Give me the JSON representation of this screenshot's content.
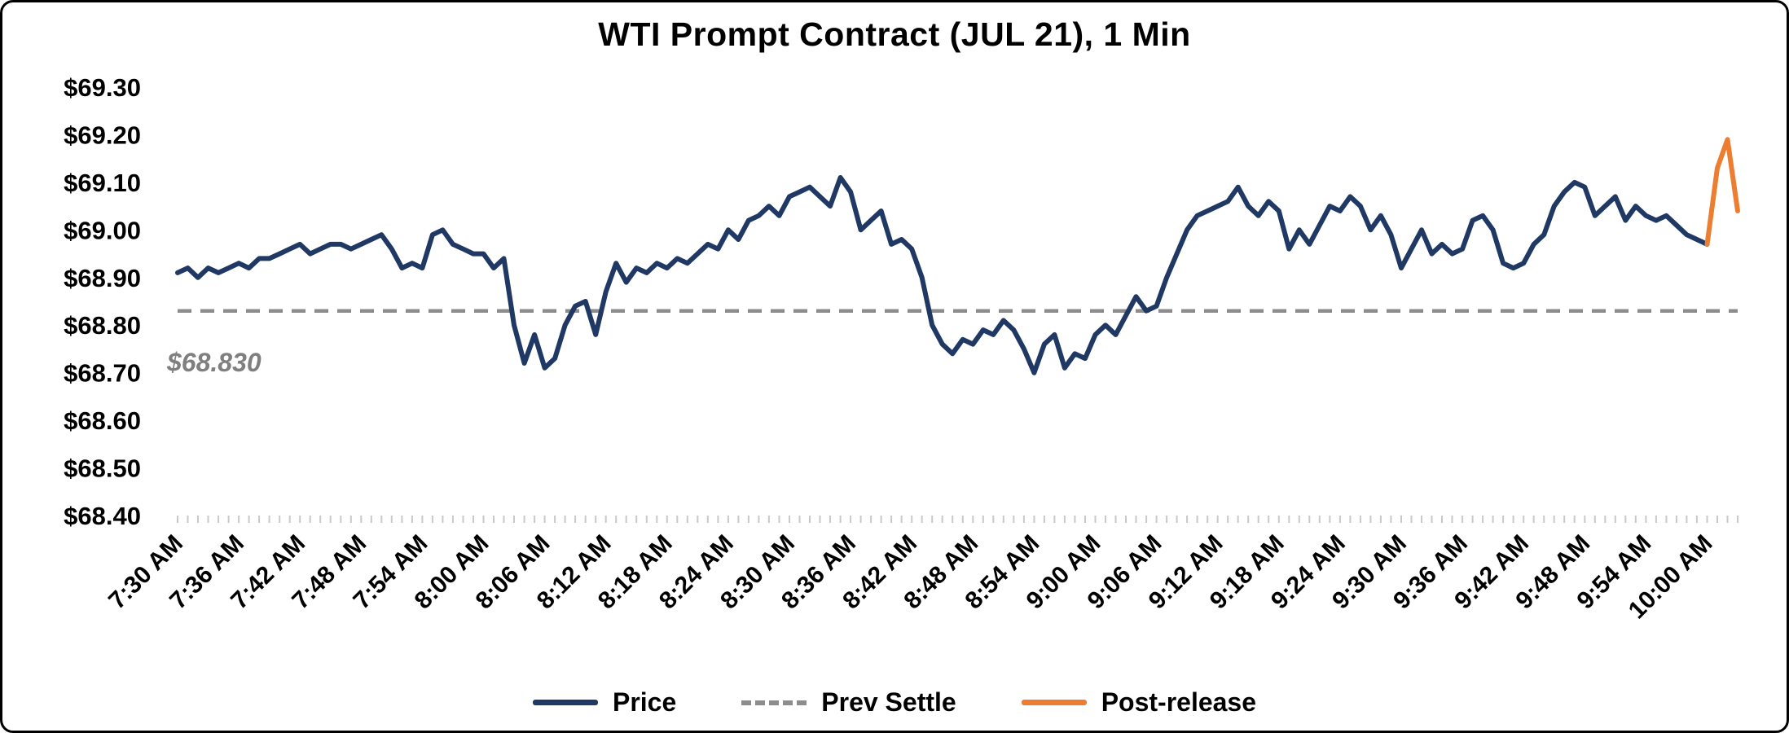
{
  "title": "WTI Prompt Contract (JUL 21), 1 Min",
  "annotation": {
    "prev_settle_label": "$68.830"
  },
  "colors": {
    "price": "#1F3864",
    "post_release": "#ED7D31",
    "prev_settle": "#8C8C8C",
    "annotation_gray": "#7F7F7F",
    "tick_text": "#000000",
    "minor_tick": "#C9C9C9"
  },
  "legend": {
    "position": "bottom",
    "items": [
      {
        "label": "Price",
        "swatch": "solid",
        "color": "#1F3864"
      },
      {
        "label": "Prev Settle",
        "swatch": "dashed",
        "color": "#8C8C8C"
      },
      {
        "label": "Post-release",
        "swatch": "solid",
        "color": "#ED7D31"
      }
    ]
  },
  "chart_data": {
    "type": "line",
    "title": "WTI Prompt Contract (JUL 21), 1 Min",
    "xlabel": "",
    "ylabel": "",
    "ylim": [
      68.4,
      69.3
    ],
    "y_tick_step": 0.1,
    "y_tick_labels": [
      "$69.30",
      "$69.20",
      "$69.10",
      "$69.00",
      "$68.90",
      "$68.80",
      "$68.70",
      "$68.60",
      "$68.50",
      "$68.40"
    ],
    "x_count": 154,
    "x_tick_every": 6,
    "x_interval_minutes": 1,
    "x_tick_labels": [
      "7:30 AM",
      "7:36 AM",
      "7:42 AM",
      "7:48 AM",
      "7:54 AM",
      "8:00 AM",
      "8:06 AM",
      "8:12 AM",
      "8:18 AM",
      "8:24 AM",
      "8:30 AM",
      "8:36 AM",
      "8:42 AM",
      "8:48 AM",
      "8:54 AM",
      "9:00 AM",
      "9:06 AM",
      "9:12 AM",
      "9:18 AM",
      "9:24 AM",
      "9:30 AM",
      "9:36 AM",
      "9:42 AM",
      "9:48 AM",
      "9:54 AM",
      "10:00 AM"
    ],
    "grid": "off",
    "legend_position": "bottom",
    "prev_settle": 68.83,
    "series": [
      {
        "name": "Price",
        "color": "#1F3864",
        "start_index": 0,
        "values": [
          68.91,
          68.92,
          68.9,
          68.92,
          68.91,
          68.92,
          68.93,
          68.92,
          68.94,
          68.94,
          68.95,
          68.96,
          68.97,
          68.95,
          68.96,
          68.97,
          68.97,
          68.96,
          68.97,
          68.98,
          68.99,
          68.96,
          68.92,
          68.93,
          68.92,
          68.99,
          69.0,
          68.97,
          68.96,
          68.95,
          68.95,
          68.92,
          68.94,
          68.8,
          68.72,
          68.78,
          68.71,
          68.73,
          68.8,
          68.84,
          68.85,
          68.78,
          68.87,
          68.93,
          68.89,
          68.92,
          68.91,
          68.93,
          68.92,
          68.94,
          68.93,
          68.95,
          68.97,
          68.96,
          69.0,
          68.98,
          69.02,
          69.03,
          69.05,
          69.03,
          69.07,
          69.08,
          69.09,
          69.07,
          69.05,
          69.11,
          69.08,
          69.0,
          69.02,
          69.04,
          68.97,
          68.98,
          68.96,
          68.9,
          68.8,
          68.76,
          68.74,
          68.77,
          68.76,
          68.79,
          68.78,
          68.81,
          68.79,
          68.75,
          68.7,
          68.76,
          68.78,
          68.71,
          68.74,
          68.73,
          68.78,
          68.8,
          68.78,
          68.82,
          68.86,
          68.83,
          68.84,
          68.9,
          68.95,
          69.0,
          69.03,
          69.04,
          69.05,
          69.06,
          69.09,
          69.05,
          69.03,
          69.06,
          69.04,
          68.96,
          69.0,
          68.97,
          69.01,
          69.05,
          69.04,
          69.07,
          69.05,
          69.0,
          69.03,
          68.99,
          68.92,
          68.96,
          69.0,
          68.95,
          68.97,
          68.95,
          68.96,
          69.02,
          69.03,
          69.0,
          68.93,
          68.92,
          68.93,
          68.97,
          68.99,
          69.05,
          69.08,
          69.1,
          69.09,
          69.03,
          69.05,
          69.07,
          69.02,
          69.05,
          69.03,
          69.02,
          69.03,
          69.01,
          68.99,
          68.98,
          68.97
        ]
      },
      {
        "name": "Post-release",
        "color": "#ED7D31",
        "start_index": 150,
        "values": [
          68.97,
          69.13,
          69.19,
          69.04
        ]
      }
    ]
  }
}
